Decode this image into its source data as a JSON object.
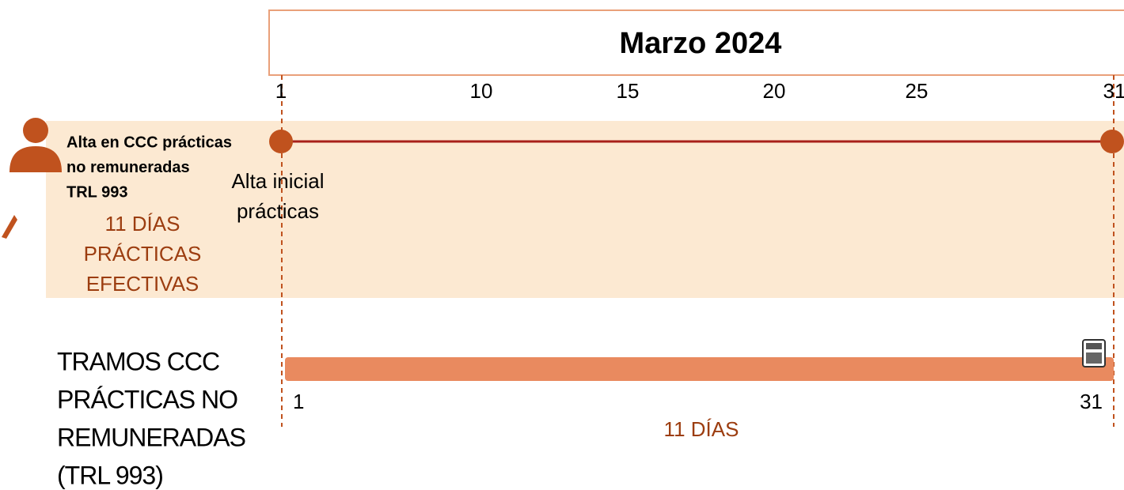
{
  "header": {
    "title": "Marzo 2024"
  },
  "axis": {
    "ticks": [
      1,
      10,
      15,
      20,
      25,
      31
    ]
  },
  "row": {
    "label_lines": [
      "Alta en CCC prácticas",
      "no remuneradas",
      "TRL 993"
    ],
    "days_lines": [
      "11 DÍAS",
      "PRÁCTICAS",
      "EFECTIVAS"
    ],
    "event_lines": [
      "Alta inicial",
      "prácticas"
    ]
  },
  "tramos": {
    "label_lines": [
      "TRAMOS CCC",
      "PRÁCTICAS NO",
      "REMUNERADAS",
      "(TRL 993)"
    ],
    "start": "1",
    "end": "31",
    "duration": "11 DÍAS"
  }
}
